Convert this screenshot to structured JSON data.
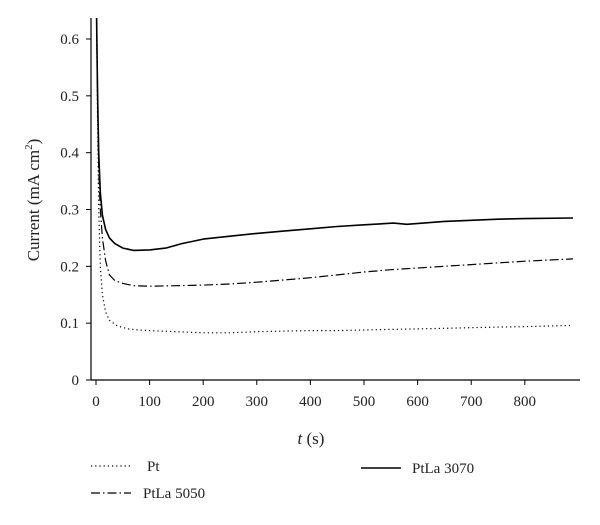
{
  "chart_data": {
    "type": "line",
    "xlabel": {
      "italic": "t",
      "rest": " (s)"
    },
    "ylabel": {
      "text": "Current (mA cm",
      "sup": "2",
      "close": ")"
    },
    "xlim": [
      -10,
      900
    ],
    "ylim": [
      0,
      0.65
    ],
    "xticks": [
      0,
      100,
      200,
      300,
      400,
      500,
      600,
      700,
      800
    ],
    "yticks": [
      0,
      0.1,
      0.2,
      0.3,
      0.4,
      0.5,
      0.6
    ],
    "grid": false,
    "legend_position": "bottom",
    "series": [
      {
        "name": "Pt",
        "style": "dotted",
        "x": [
          1,
          3,
          5,
          8,
          12,
          18,
          25,
          40,
          60,
          80,
          100,
          150,
          200,
          250,
          300,
          350,
          400,
          450,
          500,
          550,
          600,
          650,
          700,
          750,
          800,
          890
        ],
        "y": [
          0.65,
          0.45,
          0.3,
          0.2,
          0.15,
          0.12,
          0.105,
          0.095,
          0.09,
          0.088,
          0.087,
          0.085,
          0.083,
          0.083,
          0.085,
          0.086,
          0.087,
          0.087,
          0.088,
          0.089,
          0.09,
          0.091,
          0.092,
          0.093,
          0.094,
          0.096
        ]
      },
      {
        "name": "PtLa 5050",
        "style": "dashdot",
        "x": [
          1,
          3,
          5,
          8,
          12,
          18,
          25,
          35,
          50,
          70,
          100,
          150,
          200,
          250,
          300,
          350,
          400,
          450,
          500,
          550,
          600,
          650,
          700,
          750,
          800,
          890
        ],
        "y": [
          0.65,
          0.5,
          0.37,
          0.3,
          0.25,
          0.21,
          0.185,
          0.175,
          0.17,
          0.166,
          0.165,
          0.166,
          0.167,
          0.169,
          0.172,
          0.176,
          0.18,
          0.185,
          0.19,
          0.194,
          0.197,
          0.2,
          0.203,
          0.206,
          0.209,
          0.213
        ]
      },
      {
        "name": "PtLa 3070",
        "style": "solid",
        "x": [
          1,
          3,
          5,
          8,
          12,
          18,
          25,
          35,
          50,
          70,
          100,
          130,
          160,
          200,
          250,
          300,
          350,
          400,
          450,
          500,
          555,
          580,
          650,
          700,
          750,
          800,
          890
        ],
        "y": [
          0.65,
          0.5,
          0.4,
          0.33,
          0.29,
          0.265,
          0.25,
          0.24,
          0.232,
          0.228,
          0.229,
          0.232,
          0.24,
          0.248,
          0.253,
          0.258,
          0.262,
          0.266,
          0.27,
          0.273,
          0.276,
          0.274,
          0.279,
          0.281,
          0.283,
          0.284,
          0.285
        ]
      }
    ]
  },
  "legend": [
    {
      "label": "Pt",
      "style": "dotted"
    },
    {
      "label": "PtLa 5050",
      "style": "dashdot"
    },
    {
      "label": "PtLa 3070",
      "style": "solid"
    }
  ]
}
